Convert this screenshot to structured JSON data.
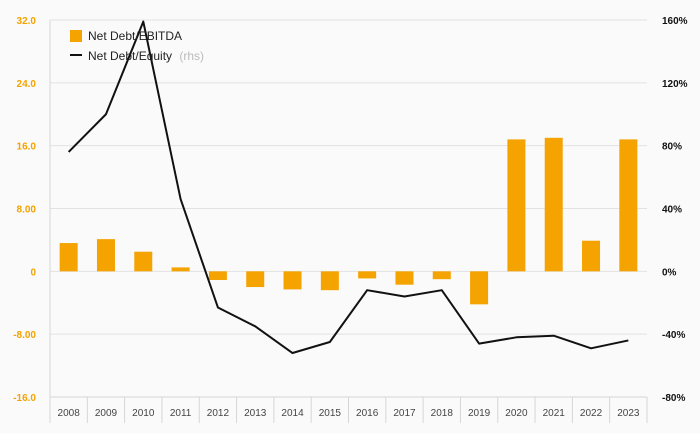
{
  "chart_data": {
    "type": "bar",
    "categories": [
      "2008",
      "2009",
      "2010",
      "2011",
      "2012",
      "2013",
      "2014",
      "2015",
      "2016",
      "2017",
      "2018",
      "2019",
      "2020",
      "2021",
      "2022",
      "2023"
    ],
    "series": [
      {
        "name": "Net Debt/EBITDA",
        "type": "bar",
        "axis": "left",
        "color": "#f4a300",
        "values": [
          3.6,
          4.1,
          2.5,
          0.5,
          -1.1,
          -2.0,
          -2.3,
          -2.4,
          -0.9,
          -1.7,
          -1.0,
          -4.2,
          16.8,
          17.0,
          3.9,
          16.8
        ]
      },
      {
        "name": "Net Debt/Equity",
        "type": "line",
        "axis": "right",
        "color": "#111111",
        "values": [
          76,
          100,
          159,
          46,
          -23,
          -35,
          -52,
          -45,
          -12,
          -16,
          -12,
          -46,
          -42,
          -41,
          -49,
          -44
        ]
      }
    ],
    "legend": {
      "entries": [
        "Net Debt/EBITDA",
        "Net Debt/Equity"
      ],
      "suffix": "(rhs)",
      "placement": "top-left"
    },
    "y_left": {
      "min": -16,
      "max": 32,
      "ticks": [
        32,
        24,
        16,
        8,
        0,
        -8,
        -16
      ],
      "tick_labels": [
        "32.0",
        "24.0",
        "16.0",
        "8.00",
        "0",
        "-8.00",
        "-16.0"
      ],
      "color": "#f4a300"
    },
    "y_right": {
      "min": -80,
      "max": 160,
      "ticks": [
        160,
        120,
        80,
        40,
        0,
        -40,
        -80
      ],
      "tick_labels": [
        "160%",
        "120%",
        "80%",
        "40%",
        "0%",
        "-40%",
        "-80%"
      ],
      "color": "#111111"
    },
    "grid": true
  }
}
